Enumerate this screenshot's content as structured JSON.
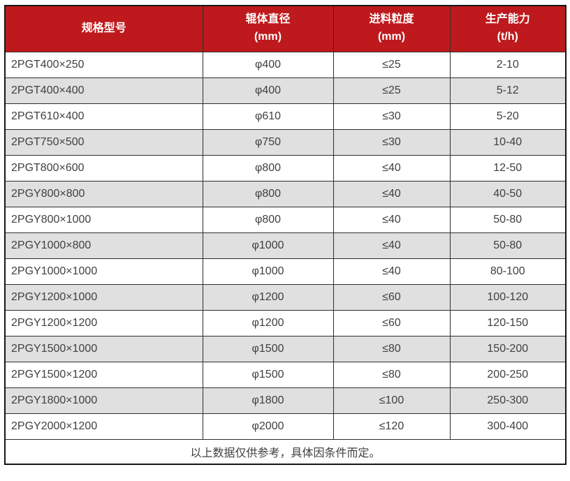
{
  "table": {
    "columns": [
      {
        "label": "规格型号",
        "unit": ""
      },
      {
        "label": "辊体直径",
        "unit": "(mm)"
      },
      {
        "label": "进料粒度",
        "unit": "(mm)"
      },
      {
        "label": "生产能力",
        "unit": "(t/h)"
      }
    ],
    "rows": [
      [
        "2PGT400×250",
        "φ400",
        "≤25",
        "2-10"
      ],
      [
        "2PGT400×400",
        "φ400",
        "≤25",
        "5-12"
      ],
      [
        "2PGT610×400",
        "φ610",
        "≤30",
        "5-20"
      ],
      [
        "2PGT750×500",
        "φ750",
        "≤30",
        "10-40"
      ],
      [
        "2PGT800×600",
        "φ800",
        "≤40",
        "12-50"
      ],
      [
        "2PGY800×800",
        "φ800",
        "≤40",
        "40-50"
      ],
      [
        "2PGY800×1000",
        "φ800",
        "≤40",
        "50-80"
      ],
      [
        "2PGY1000×800",
        "φ1000",
        "≤40",
        "50-80"
      ],
      [
        "2PGY1000×1000",
        "φ1000",
        "≤40",
        "80-100"
      ],
      [
        "2PGY1200×1000",
        "φ1200",
        "≤60",
        "100-120"
      ],
      [
        "2PGY1200×1200",
        "φ1200",
        "≤60",
        "120-150"
      ],
      [
        "2PGY1500×1000",
        "φ1500",
        "≤80",
        "150-200"
      ],
      [
        "2PGY1500×1200",
        "φ1500",
        "≤80",
        "200-250"
      ],
      [
        "2PGY1800×1000",
        "φ1800",
        "≤100",
        "250-300"
      ],
      [
        "2PGY2000×1200",
        "φ2000",
        "≤120",
        "300-400"
      ]
    ],
    "footnote": "以上数据仅供参考，具体因条件而定。"
  },
  "colors": {
    "header_bg": "#be191c",
    "header_text": "#ffffff",
    "stripe_bg": "#e0e0e0",
    "row_bg": "#ffffff",
    "body_text": "#404040",
    "border_inner": "#2e2e2e",
    "border_outer": "#161616"
  }
}
